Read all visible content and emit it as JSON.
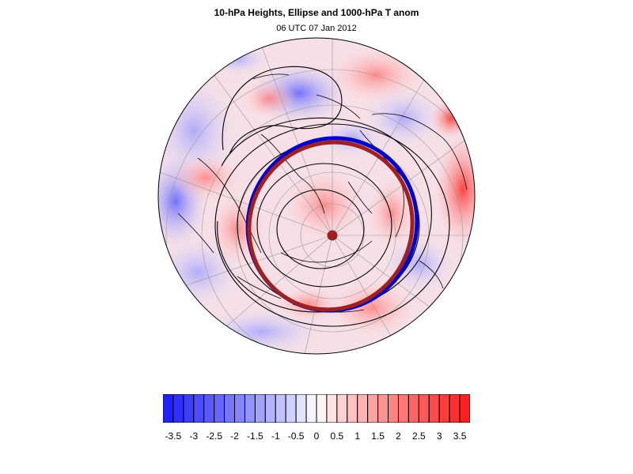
{
  "title": "10-hPa Heights, Ellipse and 1000-hPa T anom",
  "subtitle": "06 UTC 07 Jan 2012",
  "colors": {
    "negative": "#1a1aff",
    "positive": "#ff1a1a",
    "ellipse_primary": "#a02020",
    "ellipse_secondary": "#0000cc",
    "contour": "#000000",
    "coast": "#000000",
    "graticule": "#999999"
  },
  "colorbar": {
    "min": -3.75,
    "max": 3.75,
    "step": 0.25,
    "tick_labels": [
      "-3.5",
      "-3",
      "-2.5",
      "-2",
      "-1.5",
      "-1",
      "-0.5",
      "0",
      "0.5",
      "1",
      "1.5",
      "2",
      "2.5",
      "3",
      "3.5"
    ]
  },
  "map": {
    "projection": "north-polar-stereographic",
    "overlays": [
      "10-hPa height contours",
      "vortex ellipse",
      "1000-hPa temperature anomaly shading",
      "vortex centroid"
    ]
  }
}
